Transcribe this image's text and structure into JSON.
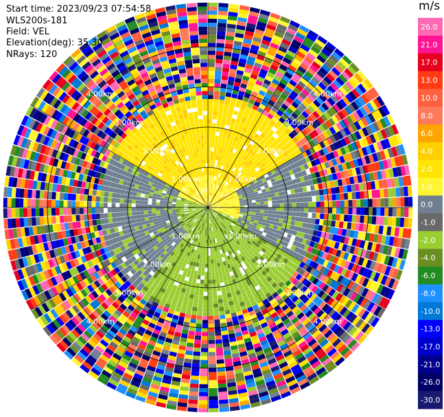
{
  "header": {
    "start_time": "Start time: 2023/09/23 07:54:58",
    "instrument": "WLS200s-181",
    "field": "Field: VEL",
    "elevation": "Elevation(deg): 35.30",
    "nrays": "NRays: 120"
  },
  "chart_data": {
    "type": "heatmap",
    "projection": "polar-ppi",
    "n_rays": 120,
    "range_rings_km": [
      1.0,
      2.0,
      3.0,
      4.0
    ],
    "range_ring_labels": [
      "1.00km",
      "2.00km",
      "3.00km",
      "4.00km"
    ],
    "max_range_km": 5.1,
    "radial_lines": 12,
    "colorbar": {
      "unit": "m/s",
      "tick_labels": [
        "26.0",
        "21.0",
        "17.0",
        "13.0",
        "10.0",
        "8.0",
        "6.0",
        "4.0",
        "2.0",
        "1.0",
        "0.0",
        "-1.0",
        "-2.0",
        "-4.0",
        "-6.0",
        "-8.0",
        "-10.0",
        "-13.0",
        "-17.0",
        "-21.0",
        "-26.0",
        "-30.0"
      ],
      "bands": [
        {
          "label": "26.0",
          "color": "#ff69b4"
        },
        {
          "label": "21.0",
          "color": "#ff1493"
        },
        {
          "label": "17.0",
          "color": "#e8001e"
        },
        {
          "label": "13.0",
          "color": "#ff3c14"
        },
        {
          "label": "10.0",
          "color": "#ff6040"
        },
        {
          "label": "8.0",
          "color": "#ff7a5a"
        },
        {
          "label": "6.0",
          "color": "#ffa500"
        },
        {
          "label": "4.0",
          "color": "#ffd000"
        },
        {
          "label": "2.0",
          "color": "#ffe500"
        },
        {
          "label": "1.0",
          "color": "#fff530"
        },
        {
          "label": "0.0",
          "color": "#708090"
        },
        {
          "label": "-1.0",
          "color": "#696969"
        },
        {
          "label": "-2.0",
          "color": "#9acd32"
        },
        {
          "label": "-4.0",
          "color": "#6b8e23"
        },
        {
          "label": "-6.0",
          "color": "#228b22"
        },
        {
          "label": "-8.0",
          "color": "#1e90ff"
        },
        {
          "label": "-10.0",
          "color": "#0078d7"
        },
        {
          "label": "-13.0",
          "color": "#0000ff"
        },
        {
          "label": "-17.0",
          "color": "#0000cd"
        },
        {
          "label": "-21.0",
          "color": "#00008b"
        },
        {
          "label": "-26.0",
          "color": "#000066"
        },
        {
          "label": "-30.0",
          "color": "#191970"
        }
      ]
    },
    "velocity_structure": [
      {
        "range_km": [
          0.0,
          0.8
        ],
        "sector_deg": [
          290,
          110
        ],
        "value_ms": 1.0
      },
      {
        "range_km": [
          0.0,
          0.8
        ],
        "sector_deg": [
          110,
          290
        ],
        "value_ms": -2.0
      },
      {
        "range_km": [
          0.8,
          2.7
        ],
        "sector_deg": [
          300,
          60
        ],
        "value_ms": 2.0
      },
      {
        "range_km": [
          0.8,
          2.7
        ],
        "sector_deg": [
          60,
          120
        ],
        "value_ms": 0.0
      },
      {
        "range_km": [
          0.8,
          2.7
        ],
        "sector_deg": [
          120,
          220
        ],
        "value_ms": -2.0
      },
      {
        "range_km": [
          0.8,
          2.7
        ],
        "sector_deg": [
          220,
          300
        ],
        "value_ms": 0.0
      },
      {
        "range_km": [
          2.7,
          3.2
        ],
        "sector_deg": [
          0,
          360
        ],
        "value_ms": "noise"
      },
      {
        "range_km": [
          3.2,
          5.1
        ],
        "sector_deg": [
          0,
          360
        ],
        "value_ms": "noise"
      }
    ]
  }
}
